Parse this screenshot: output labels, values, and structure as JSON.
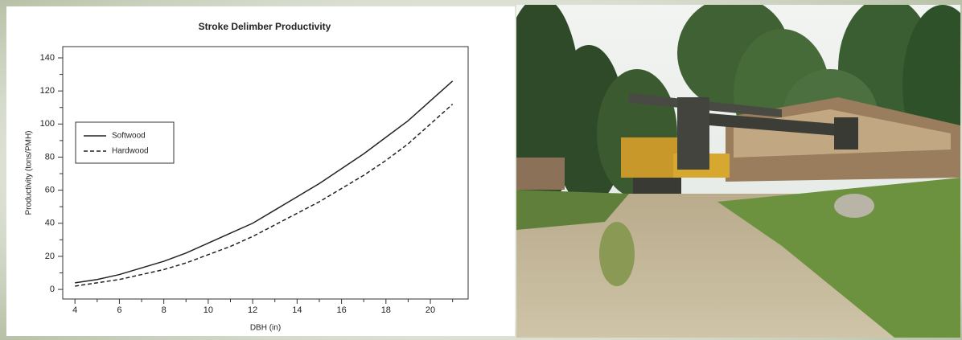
{
  "chart_data": {
    "type": "line",
    "title": "Stroke Delimber Productivity",
    "x_label": "DBH (in)",
    "y_label": "Productivity (tons/PMH)",
    "x": [
      4,
      5,
      6,
      7,
      8,
      9,
      10,
      11,
      12,
      13,
      14,
      15,
      16,
      17,
      18,
      19,
      20,
      21
    ],
    "series": [
      {
        "name": "Softwood",
        "color": "#222222",
        "style": "solid",
        "values": [
          4,
          6,
          9,
          13,
          17,
          22,
          28,
          34,
          40,
          48,
          56,
          64,
          73,
          82,
          92,
          102,
          114,
          126
        ]
      },
      {
        "name": "Hardwood",
        "color": "#222222",
        "style": "dashed",
        "values": [
          2,
          4,
          6,
          9,
          12,
          16,
          21,
          26,
          32,
          39,
          46,
          53,
          61,
          69,
          78,
          88,
          100,
          112
        ]
      }
    ],
    "xlim": [
      3.45,
      21.7
    ],
    "ylim": [
      -5.8,
      146.8
    ],
    "xticks": [
      4,
      6,
      8,
      10,
      12,
      14,
      16,
      18,
      20
    ],
    "xminorticks": [
      5,
      7,
      9,
      11,
      13,
      15,
      17,
      19,
      21
    ],
    "yticks": [
      0,
      20,
      40,
      60,
      80,
      100,
      120,
      140
    ],
    "yminorticks": [
      10,
      30,
      50,
      70,
      90,
      110,
      130
    ],
    "legend": "left"
  }
}
